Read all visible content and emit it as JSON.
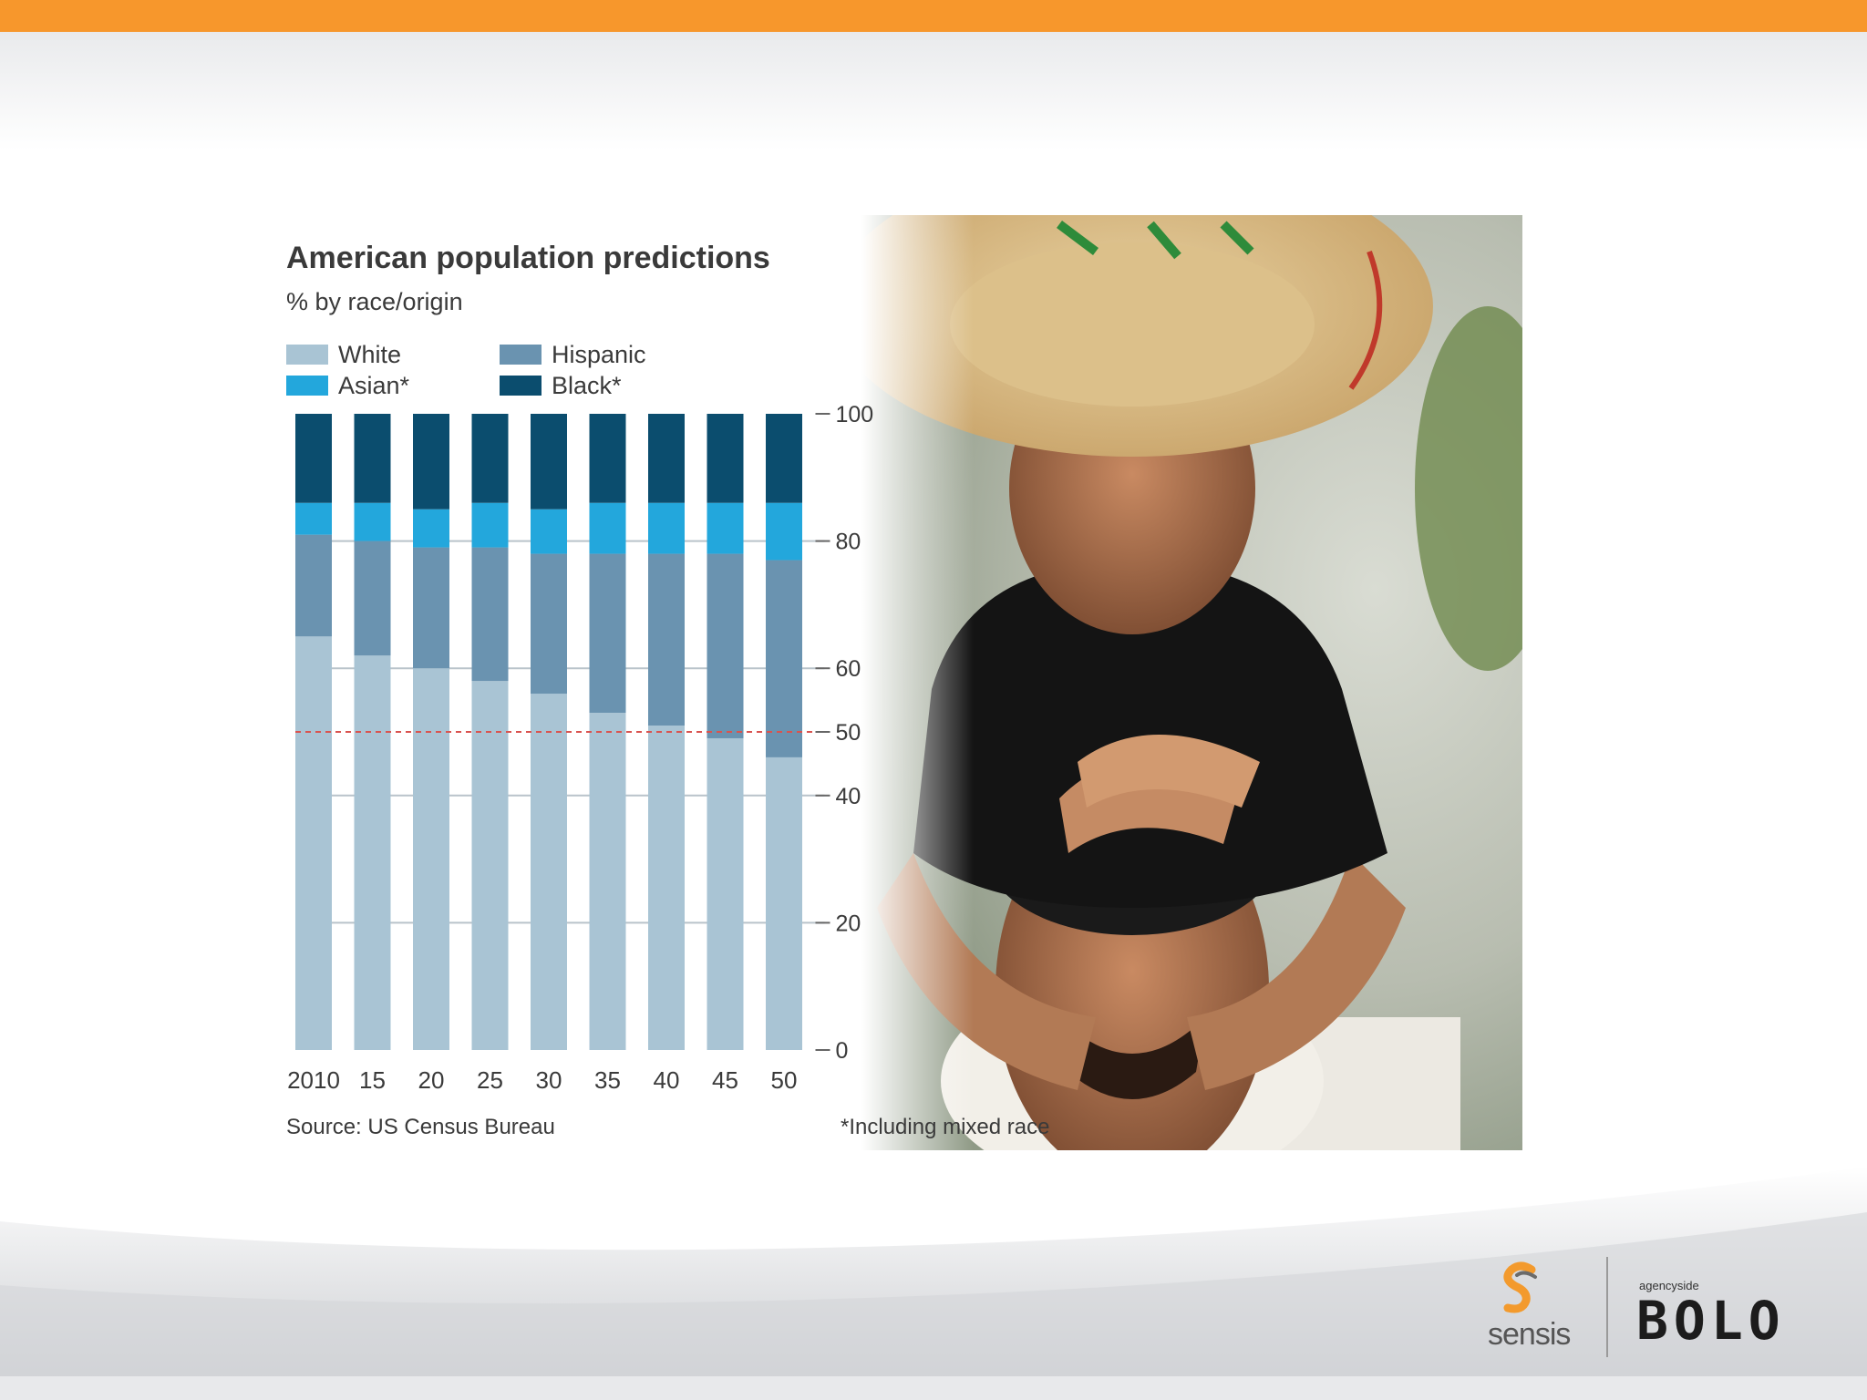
{
  "chart_data": {
    "type": "bar",
    "stacked": true,
    "title": "American population predictions",
    "subtitle": "% by race/origin",
    "categories": [
      "2010",
      "15",
      "20",
      "25",
      "30",
      "35",
      "40",
      "45",
      "50"
    ],
    "series": [
      {
        "name": "White",
        "color": "#a9c4d4",
        "values": [
          65,
          62,
          60,
          58,
          56,
          53,
          51,
          49,
          46
        ]
      },
      {
        "name": "Hispanic",
        "color": "#6a93b0",
        "values": [
          16,
          18,
          19,
          21,
          22,
          25,
          27,
          29,
          31
        ]
      },
      {
        "name": "Asian*",
        "color": "#23a7dc",
        "values": [
          5,
          6,
          6,
          7,
          7,
          8,
          8,
          8,
          9
        ]
      },
      {
        "name": "Black*",
        "color": "#0b4d6e",
        "values": [
          14,
          14,
          15,
          14,
          15,
          14,
          14,
          14,
          14
        ]
      }
    ],
    "ylim": [
      0,
      100
    ],
    "yticks": [
      "0",
      "20",
      "40",
      "50",
      "60",
      "80",
      "100"
    ],
    "reference_line": {
      "value": 50,
      "color": "#d9534f"
    },
    "legend": "top-left",
    "grid": true,
    "source": "Source: US Census Bureau",
    "footnote": "*Including mixed race"
  },
  "branding": {
    "sensis": "sensis",
    "bolo_small": "agencyside",
    "bolo": "BOLO"
  },
  "colors": {
    "accent_bar": "#f7972c"
  }
}
